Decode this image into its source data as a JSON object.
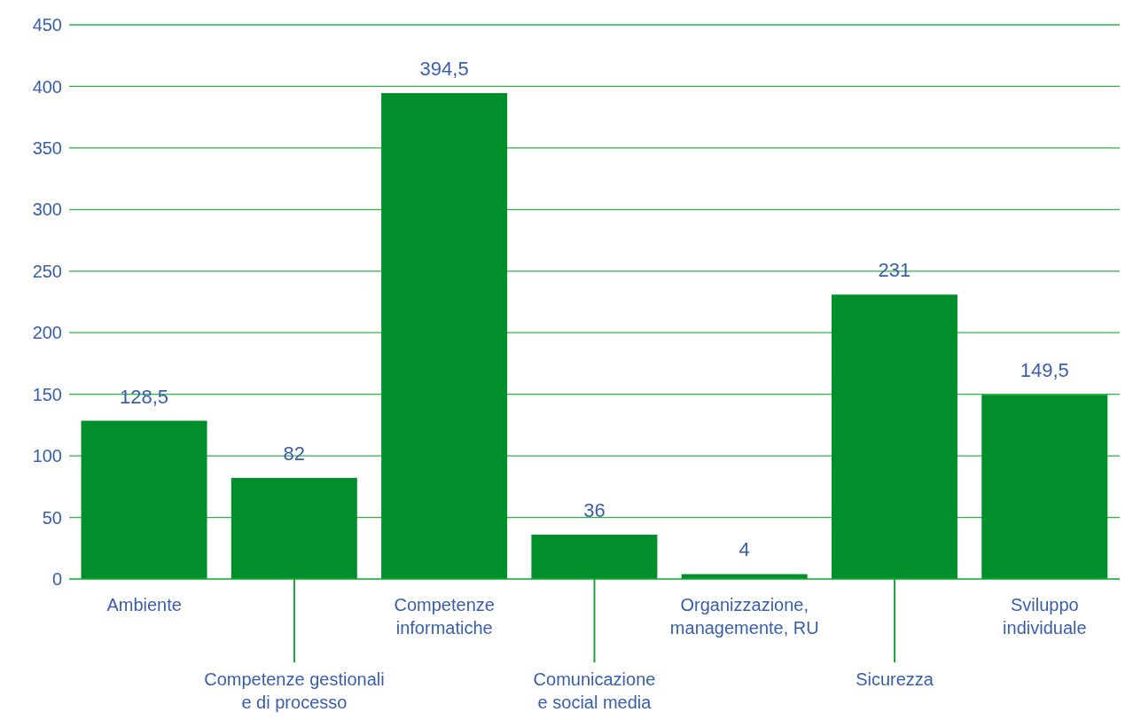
{
  "chart_data": {
    "type": "bar",
    "categories": [
      "Ambiente",
      "Competenze gestionali\ne di processo",
      "Competenze\ninformatiche",
      "Comunicazione\ne social media",
      "Organizzazione,\nmanagemente, RU",
      "Sicurezza",
      "Sviluppo\nindividuale"
    ],
    "values": [
      128.5,
      82,
      394.5,
      36,
      4,
      231,
      149.5
    ],
    "value_labels": [
      "128,5",
      "82",
      "394,5",
      "36",
      "4",
      "231",
      "149,5"
    ],
    "color": "#008f2a",
    "ylim": [
      0,
      450
    ],
    "yticks": [
      0,
      50,
      100,
      150,
      200,
      250,
      300,
      350,
      400,
      450
    ],
    "grid": "y"
  }
}
